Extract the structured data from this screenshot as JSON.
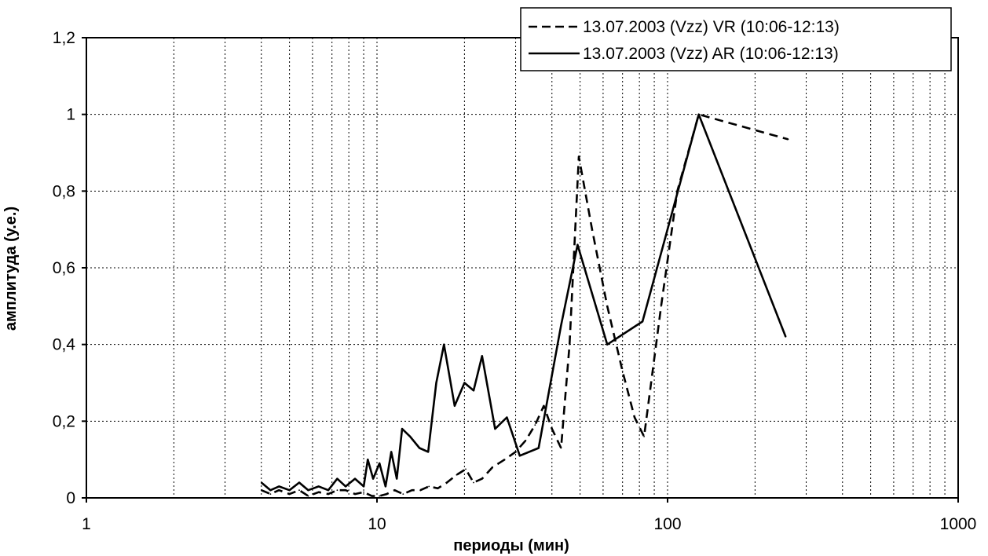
{
  "chart_data": {
    "type": "line",
    "title": "",
    "xlabel": "периоды (мин)",
    "ylabel": "амплитуда (у.е.)",
    "x_scale": "log",
    "xlim": [
      1,
      1000
    ],
    "ylim": [
      0,
      1.2
    ],
    "x_ticks": [
      "1",
      "10",
      "100",
      "1000"
    ],
    "y_ticks": [
      "0",
      "0,2",
      "0,4",
      "0,6",
      "0,8",
      "1",
      "1,2"
    ],
    "grid": true,
    "legend_position": "top-right",
    "series": [
      {
        "name": "13.07.2003 (Vzz) VR (10:06-12:13)",
        "line_style": "dashed",
        "color": "#000000",
        "points": [
          [
            4.0,
            0.02
          ],
          [
            4.3,
            0.01
          ],
          [
            4.6,
            0.02
          ],
          [
            5.0,
            0.01
          ],
          [
            5.4,
            0.02
          ],
          [
            5.8,
            0.005
          ],
          [
            6.3,
            0.015
          ],
          [
            6.8,
            0.01
          ],
          [
            7.3,
            0.02
          ],
          [
            7.8,
            0.02
          ],
          [
            8.4,
            0.01
          ],
          [
            9.0,
            0.015
          ],
          [
            9.6,
            0.005
          ],
          [
            10.2,
            0.005
          ],
          [
            10.8,
            0.01
          ],
          [
            11.5,
            0.02
          ],
          [
            12.3,
            0.01
          ],
          [
            13.2,
            0.02
          ],
          [
            14.1,
            0.02
          ],
          [
            15.1,
            0.03
          ],
          [
            16.2,
            0.025
          ],
          [
            17.4,
            0.04
          ],
          [
            18.8,
            0.06
          ],
          [
            20.2,
            0.075
          ],
          [
            21.5,
            0.04
          ],
          [
            23.0,
            0.05
          ],
          [
            25.0,
            0.08
          ],
          [
            27.5,
            0.1
          ],
          [
            30.0,
            0.12
          ],
          [
            32.5,
            0.15
          ],
          [
            35.0,
            0.19
          ],
          [
            37.5,
            0.24
          ],
          [
            40.0,
            0.18
          ],
          [
            43.0,
            0.13
          ],
          [
            46.0,
            0.4
          ],
          [
            49.5,
            0.89
          ],
          [
            55.0,
            0.7
          ],
          [
            62.0,
            0.5
          ],
          [
            70.0,
            0.33
          ],
          [
            77.0,
            0.21
          ],
          [
            83.0,
            0.16
          ],
          [
            95.0,
            0.5
          ],
          [
            108.0,
            0.8
          ],
          [
            128.0,
            1.0
          ],
          [
            260.0,
            0.935
          ]
        ]
      },
      {
        "name": "13.07.2003 (Vzz) AR (10:06-12:13)",
        "line_style": "solid",
        "color": "#000000",
        "points": [
          [
            4.0,
            0.04
          ],
          [
            4.3,
            0.02
          ],
          [
            4.6,
            0.03
          ],
          [
            5.0,
            0.02
          ],
          [
            5.4,
            0.04
          ],
          [
            5.8,
            0.02
          ],
          [
            6.3,
            0.03
          ],
          [
            6.8,
            0.02
          ],
          [
            7.3,
            0.05
          ],
          [
            7.8,
            0.03
          ],
          [
            8.4,
            0.05
          ],
          [
            9.0,
            0.03
          ],
          [
            9.3,
            0.1
          ],
          [
            9.7,
            0.05
          ],
          [
            10.2,
            0.09
          ],
          [
            10.7,
            0.03
          ],
          [
            11.2,
            0.12
          ],
          [
            11.7,
            0.05
          ],
          [
            12.2,
            0.18
          ],
          [
            13.0,
            0.16
          ],
          [
            14.0,
            0.13
          ],
          [
            15.0,
            0.12
          ],
          [
            16.0,
            0.3
          ],
          [
            17.0,
            0.4
          ],
          [
            18.5,
            0.24
          ],
          [
            20.0,
            0.3
          ],
          [
            21.5,
            0.28
          ],
          [
            23.0,
            0.37
          ],
          [
            25.5,
            0.18
          ],
          [
            28.0,
            0.21
          ],
          [
            31.0,
            0.11
          ],
          [
            36.0,
            0.13
          ],
          [
            43.0,
            0.45
          ],
          [
            49.0,
            0.66
          ],
          [
            62.0,
            0.4
          ],
          [
            82.0,
            0.46
          ],
          [
            128.0,
            1.0
          ],
          [
            255.0,
            0.42
          ]
        ]
      }
    ]
  }
}
